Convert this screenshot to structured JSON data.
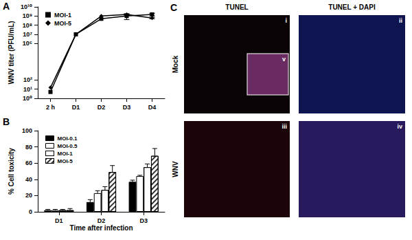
{
  "chart_data": [
    {
      "type": "line",
      "title": "A",
      "ylabel": "WNV titer (PFU/mL)",
      "categories": [
        "2 h",
        "D1",
        "D2",
        "D3",
        "D4"
      ],
      "log": "y",
      "ylim": [
        1,
        10000000000
      ],
      "yticks": [
        {
          "value": 1,
          "label": "10⁰"
        },
        {
          "value": 10,
          "label": "10¹"
        },
        {
          "value": 100,
          "label": "10²"
        },
        {
          "value": 1000000,
          "label": "10⁶"
        },
        {
          "value": 10000000,
          "label": "10⁷"
        },
        {
          "value": 100000000,
          "label": "10⁸"
        },
        {
          "value": 1000000000,
          "label": "10⁹"
        },
        {
          "value": 10000000000,
          "label": "10¹⁰"
        }
      ],
      "grid": false,
      "legend": "upper left",
      "series": [
        {
          "name": "MOI-1",
          "color": "#000000",
          "marker": "square",
          "values": [
            5,
            10000000,
            500000000,
            1000000000,
            1500000000
          ],
          "errors": [
            0,
            0,
            0,
            600000000,
            500000000
          ]
        },
        {
          "name": "MOI-5",
          "color": "#000000",
          "marker": "diamond",
          "values": [
            15,
            10000000,
            1000000000,
            1500000000,
            600000000
          ],
          "errors": [
            0,
            0,
            0,
            300000000,
            100000000
          ]
        }
      ]
    },
    {
      "type": "bar",
      "title": "B",
      "xlabel": "Time after infection",
      "ylabel": "% Cell toxicity",
      "categories": [
        "D1",
        "D2",
        "D3"
      ],
      "ylim": [
        0,
        100
      ],
      "yticks": [
        0,
        20,
        40,
        60,
        80,
        100
      ],
      "grid": false,
      "legend": "upper left",
      "series": [
        {
          "name": "MOI-0.1",
          "color": "#000000",
          "values": [
            2,
            12,
            37
          ],
          "errors": [
            1,
            3,
            2
          ]
        },
        {
          "name": "MOI-0.5",
          "color": "#ffffff",
          "values": [
            2,
            23,
            44
          ],
          "errors": [
            1,
            3,
            1
          ]
        },
        {
          "name": "MOI-1",
          "color": "#ffffff",
          "values": [
            2,
            27,
            55
          ],
          "errors": [
            1,
            4,
            4
          ]
        },
        {
          "name": "MOI-5",
          "color": "#ffffff",
          "values": [
            2,
            49,
            69
          ],
          "errors": [
            2,
            8,
            9
          ]
        }
      ]
    }
  ],
  "image_panel": {
    "title": "C",
    "columns": [
      "TUNEL",
      "TUNEL + DAPI"
    ],
    "rows": [
      "Mock",
      "WNV"
    ],
    "images": [
      [
        "i",
        "ii"
      ],
      [
        "iii",
        "iv"
      ]
    ],
    "image_colors": [
      [
        "#0a0406",
        "#0e1450"
      ],
      [
        "#1c0508",
        "#281a5c"
      ]
    ],
    "inset": {
      "label": "v",
      "color": "#6a2a62"
    }
  }
}
